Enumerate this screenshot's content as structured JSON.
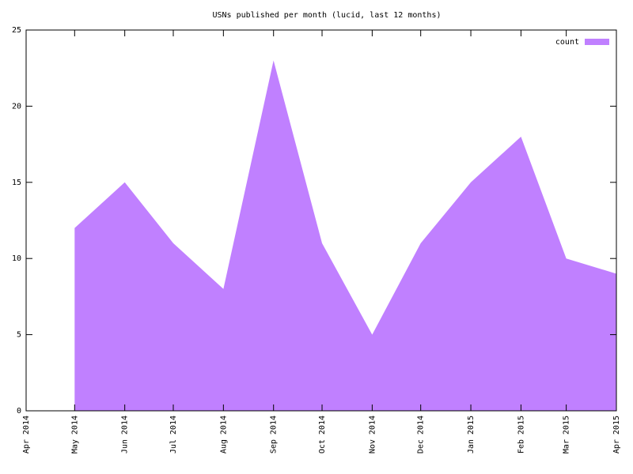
{
  "chart_data": {
    "type": "area",
    "title": "USNs published per month (lucid, last 12 months)",
    "x": [
      "May 2014",
      "Jun 2014",
      "Jul 2014",
      "Aug 2014",
      "Sep 2014",
      "Oct 2014",
      "Nov 2014",
      "Dec 2014",
      "Jan 2015",
      "Feb 2015",
      "Mar 2015",
      "Apr 2015"
    ],
    "series": [
      {
        "name": "count",
        "color": "#c080ff",
        "values": [
          12,
          15,
          11,
          8,
          23,
          11,
          5,
          11,
          15,
          18,
          10,
          9
        ]
      }
    ],
    "xlim": [
      "Apr 2014",
      "Apr 2015"
    ],
    "xticks": [
      "Apr 2014",
      "May 2014",
      "Jun 2014",
      "Jul 2014",
      "Aug 2014",
      "Sep 2014",
      "Oct 2014",
      "Nov 2014",
      "Dec 2014",
      "Jan 2015",
      "Feb 2015",
      "Mar 2015",
      "Apr 2015"
    ],
    "ylim": [
      0,
      25
    ],
    "yticks": [
      0,
      5,
      10,
      15,
      20,
      25
    ],
    "legend": "top-right"
  }
}
